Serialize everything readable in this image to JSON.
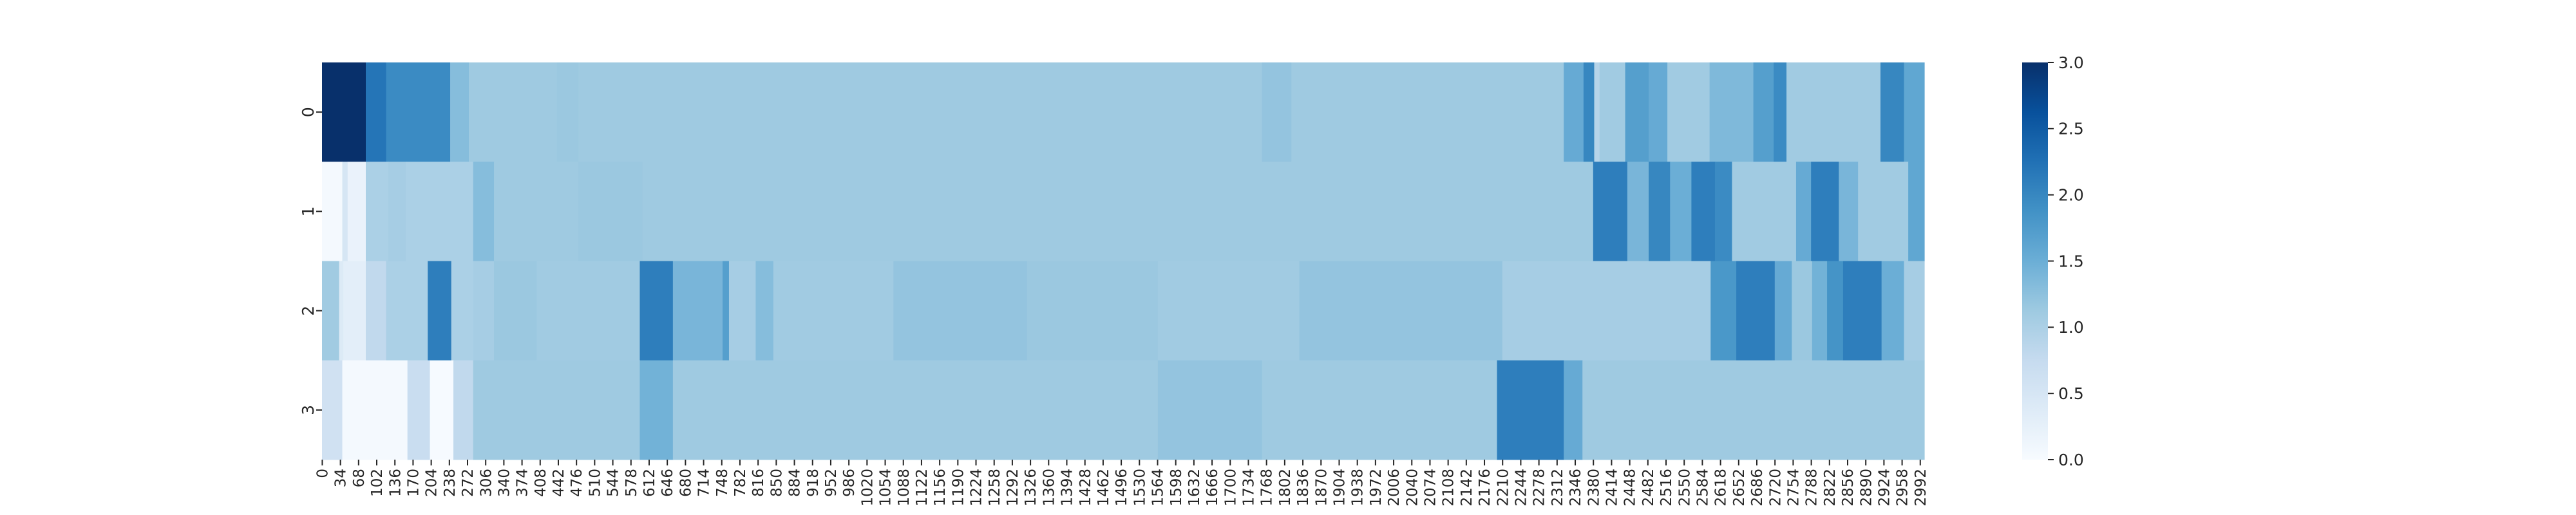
{
  "chart_data": {
    "type": "heatmap",
    "title": "",
    "xlabel": "",
    "ylabel": "",
    "colormap": "Blues",
    "colorbar": {
      "vmin": 0,
      "vmax": 3,
      "ticks": [
        "0.0",
        "0.5",
        "1.0",
        "1.5",
        "2.0",
        "2.5",
        "3.0"
      ]
    },
    "xlim": [
      0,
      3000
    ],
    "x_tick_step": 34,
    "x_tick_labels": [
      "0",
      "34",
      "68",
      "102",
      "136",
      "170",
      "204",
      "238",
      "272",
      "306",
      "340",
      "374",
      "408",
      "442",
      "476",
      "510",
      "544",
      "578",
      "612",
      "646",
      "680",
      "714",
      "748",
      "782",
      "816",
      "850",
      "884",
      "918",
      "952",
      "986",
      "1020",
      "1054",
      "1088",
      "1122",
      "1156",
      "1190",
      "1224",
      "1258",
      "1292",
      "1326",
      "1360",
      "1394",
      "1428",
      "1462",
      "1496",
      "1530",
      "1564",
      "1598",
      "1632",
      "1666",
      "1700",
      "1734",
      "1768",
      "1802",
      "1836",
      "1870",
      "1904",
      "1938",
      "1972",
      "2006",
      "2040",
      "2074",
      "2108",
      "2142",
      "2176",
      "2210",
      "2244",
      "2278",
      "2312",
      "2346",
      "2380",
      "2414",
      "2448",
      "2482",
      "2516",
      "2550",
      "2584",
      "2618",
      "2652",
      "2686",
      "2720",
      "2754",
      "2788",
      "2822",
      "2856",
      "2890",
      "2924",
      "2958",
      "2992"
    ],
    "rows": [
      {
        "label": "0",
        "segments": [
          {
            "x0": 0,
            "x1": 82,
            "v": 3.0
          },
          {
            "x0": 82,
            "x1": 120,
            "v": 2.2
          },
          {
            "x0": 120,
            "x1": 240,
            "v": 1.95
          },
          {
            "x0": 240,
            "x1": 275,
            "v": 1.3
          },
          {
            "x0": 275,
            "x1": 440,
            "v": 1.12
          },
          {
            "x0": 440,
            "x1": 480,
            "v": 1.15
          },
          {
            "x0": 480,
            "x1": 1760,
            "v": 1.12
          },
          {
            "x0": 1760,
            "x1": 1815,
            "v": 1.2
          },
          {
            "x0": 1815,
            "x1": 2325,
            "v": 1.12
          },
          {
            "x0": 2325,
            "x1": 2362,
            "v": 1.55
          },
          {
            "x0": 2362,
            "x1": 2382,
            "v": 2.0
          },
          {
            "x0": 2382,
            "x1": 2392,
            "v": 0.9
          },
          {
            "x0": 2392,
            "x1": 2440,
            "v": 1.1
          },
          {
            "x0": 2440,
            "x1": 2484,
            "v": 1.7
          },
          {
            "x0": 2484,
            "x1": 2519,
            "v": 1.55
          },
          {
            "x0": 2519,
            "x1": 2598,
            "v": 1.1
          },
          {
            "x0": 2598,
            "x1": 2680,
            "v": 1.35
          },
          {
            "x0": 2680,
            "x1": 2718,
            "v": 1.7
          },
          {
            "x0": 2718,
            "x1": 2742,
            "v": 1.95
          },
          {
            "x0": 2742,
            "x1": 2918,
            "v": 1.1
          },
          {
            "x0": 2918,
            "x1": 2962,
            "v": 2.0
          },
          {
            "x0": 2962,
            "x1": 3000,
            "v": 1.6
          }
        ]
      },
      {
        "label": "1",
        "segments": [
          {
            "x0": 0,
            "x1": 38,
            "v": 0.05
          },
          {
            "x0": 38,
            "x1": 48,
            "v": 0.5
          },
          {
            "x0": 48,
            "x1": 82,
            "v": 0.2
          },
          {
            "x0": 82,
            "x1": 124,
            "v": 1.0
          },
          {
            "x0": 124,
            "x1": 157,
            "v": 1.05
          },
          {
            "x0": 157,
            "x1": 283,
            "v": 1.0
          },
          {
            "x0": 283,
            "x1": 322,
            "v": 1.3
          },
          {
            "x0": 322,
            "x1": 480,
            "v": 1.12
          },
          {
            "x0": 480,
            "x1": 600,
            "v": 1.15
          },
          {
            "x0": 600,
            "x1": 2380,
            "v": 1.12
          },
          {
            "x0": 2380,
            "x1": 2444,
            "v": 2.1
          },
          {
            "x0": 2444,
            "x1": 2484,
            "v": 1.4
          },
          {
            "x0": 2484,
            "x1": 2524,
            "v": 2.0
          },
          {
            "x0": 2524,
            "x1": 2564,
            "v": 1.5
          },
          {
            "x0": 2564,
            "x1": 2608,
            "v": 2.1
          },
          {
            "x0": 2608,
            "x1": 2640,
            "v": 1.95
          },
          {
            "x0": 2640,
            "x1": 2760,
            "v": 1.1
          },
          {
            "x0": 2760,
            "x1": 2788,
            "v": 1.55
          },
          {
            "x0": 2788,
            "x1": 2840,
            "v": 2.1
          },
          {
            "x0": 2840,
            "x1": 2876,
            "v": 1.4
          },
          {
            "x0": 2876,
            "x1": 2970,
            "v": 1.1
          },
          {
            "x0": 2970,
            "x1": 3000,
            "v": 1.6
          }
        ]
      },
      {
        "label": "2",
        "segments": [
          {
            "x0": 0,
            "x1": 32,
            "v": 1.1
          },
          {
            "x0": 32,
            "x1": 40,
            "v": 0.4
          },
          {
            "x0": 40,
            "x1": 82,
            "v": 0.3
          },
          {
            "x0": 82,
            "x1": 120,
            "v": 0.8
          },
          {
            "x0": 120,
            "x1": 198,
            "v": 1.0
          },
          {
            "x0": 198,
            "x1": 242,
            "v": 2.1
          },
          {
            "x0": 242,
            "x1": 283,
            "v": 1.0
          },
          {
            "x0": 283,
            "x1": 322,
            "v": 1.05
          },
          {
            "x0": 322,
            "x1": 402,
            "v": 1.15
          },
          {
            "x0": 402,
            "x1": 595,
            "v": 1.1
          },
          {
            "x0": 595,
            "x1": 657,
            "v": 2.1
          },
          {
            "x0": 657,
            "x1": 750,
            "v": 1.4
          },
          {
            "x0": 750,
            "x1": 762,
            "v": 1.7
          },
          {
            "x0": 762,
            "x1": 812,
            "v": 1.05
          },
          {
            "x0": 812,
            "x1": 845,
            "v": 1.3
          },
          {
            "x0": 845,
            "x1": 1070,
            "v": 1.1
          },
          {
            "x0": 1070,
            "x1": 1320,
            "v": 1.2
          },
          {
            "x0": 1320,
            "x1": 1565,
            "v": 1.15
          },
          {
            "x0": 1565,
            "x1": 1830,
            "v": 1.1
          },
          {
            "x0": 1830,
            "x1": 2210,
            "v": 1.2
          },
          {
            "x0": 2210,
            "x1": 2600,
            "v": 1.05
          },
          {
            "x0": 2600,
            "x1": 2648,
            "v": 1.8
          },
          {
            "x0": 2648,
            "x1": 2720,
            "v": 2.1
          },
          {
            "x0": 2720,
            "x1": 2752,
            "v": 1.55
          },
          {
            "x0": 2752,
            "x1": 2790,
            "v": 1.15
          },
          {
            "x0": 2790,
            "x1": 2818,
            "v": 1.45
          },
          {
            "x0": 2818,
            "x1": 2848,
            "v": 1.85
          },
          {
            "x0": 2848,
            "x1": 2920,
            "v": 2.1
          },
          {
            "x0": 2920,
            "x1": 2962,
            "v": 1.5
          },
          {
            "x0": 2962,
            "x1": 3000,
            "v": 1.05
          }
        ]
      },
      {
        "label": "3",
        "segments": [
          {
            "x0": 0,
            "x1": 38,
            "v": 0.6
          },
          {
            "x0": 38,
            "x1": 160,
            "v": 0.05
          },
          {
            "x0": 160,
            "x1": 202,
            "v": 0.7
          },
          {
            "x0": 202,
            "x1": 246,
            "v": 0.02
          },
          {
            "x0": 246,
            "x1": 283,
            "v": 0.8
          },
          {
            "x0": 283,
            "x1": 595,
            "v": 1.12
          },
          {
            "x0": 595,
            "x1": 657,
            "v": 1.45
          },
          {
            "x0": 657,
            "x1": 1565,
            "v": 1.12
          },
          {
            "x0": 1565,
            "x1": 1760,
            "v": 1.2
          },
          {
            "x0": 1760,
            "x1": 2200,
            "v": 1.12
          },
          {
            "x0": 2200,
            "x1": 2325,
            "v": 2.1
          },
          {
            "x0": 2325,
            "x1": 2360,
            "v": 1.55
          },
          {
            "x0": 2360,
            "x1": 3000,
            "v": 1.12
          }
        ]
      }
    ]
  }
}
